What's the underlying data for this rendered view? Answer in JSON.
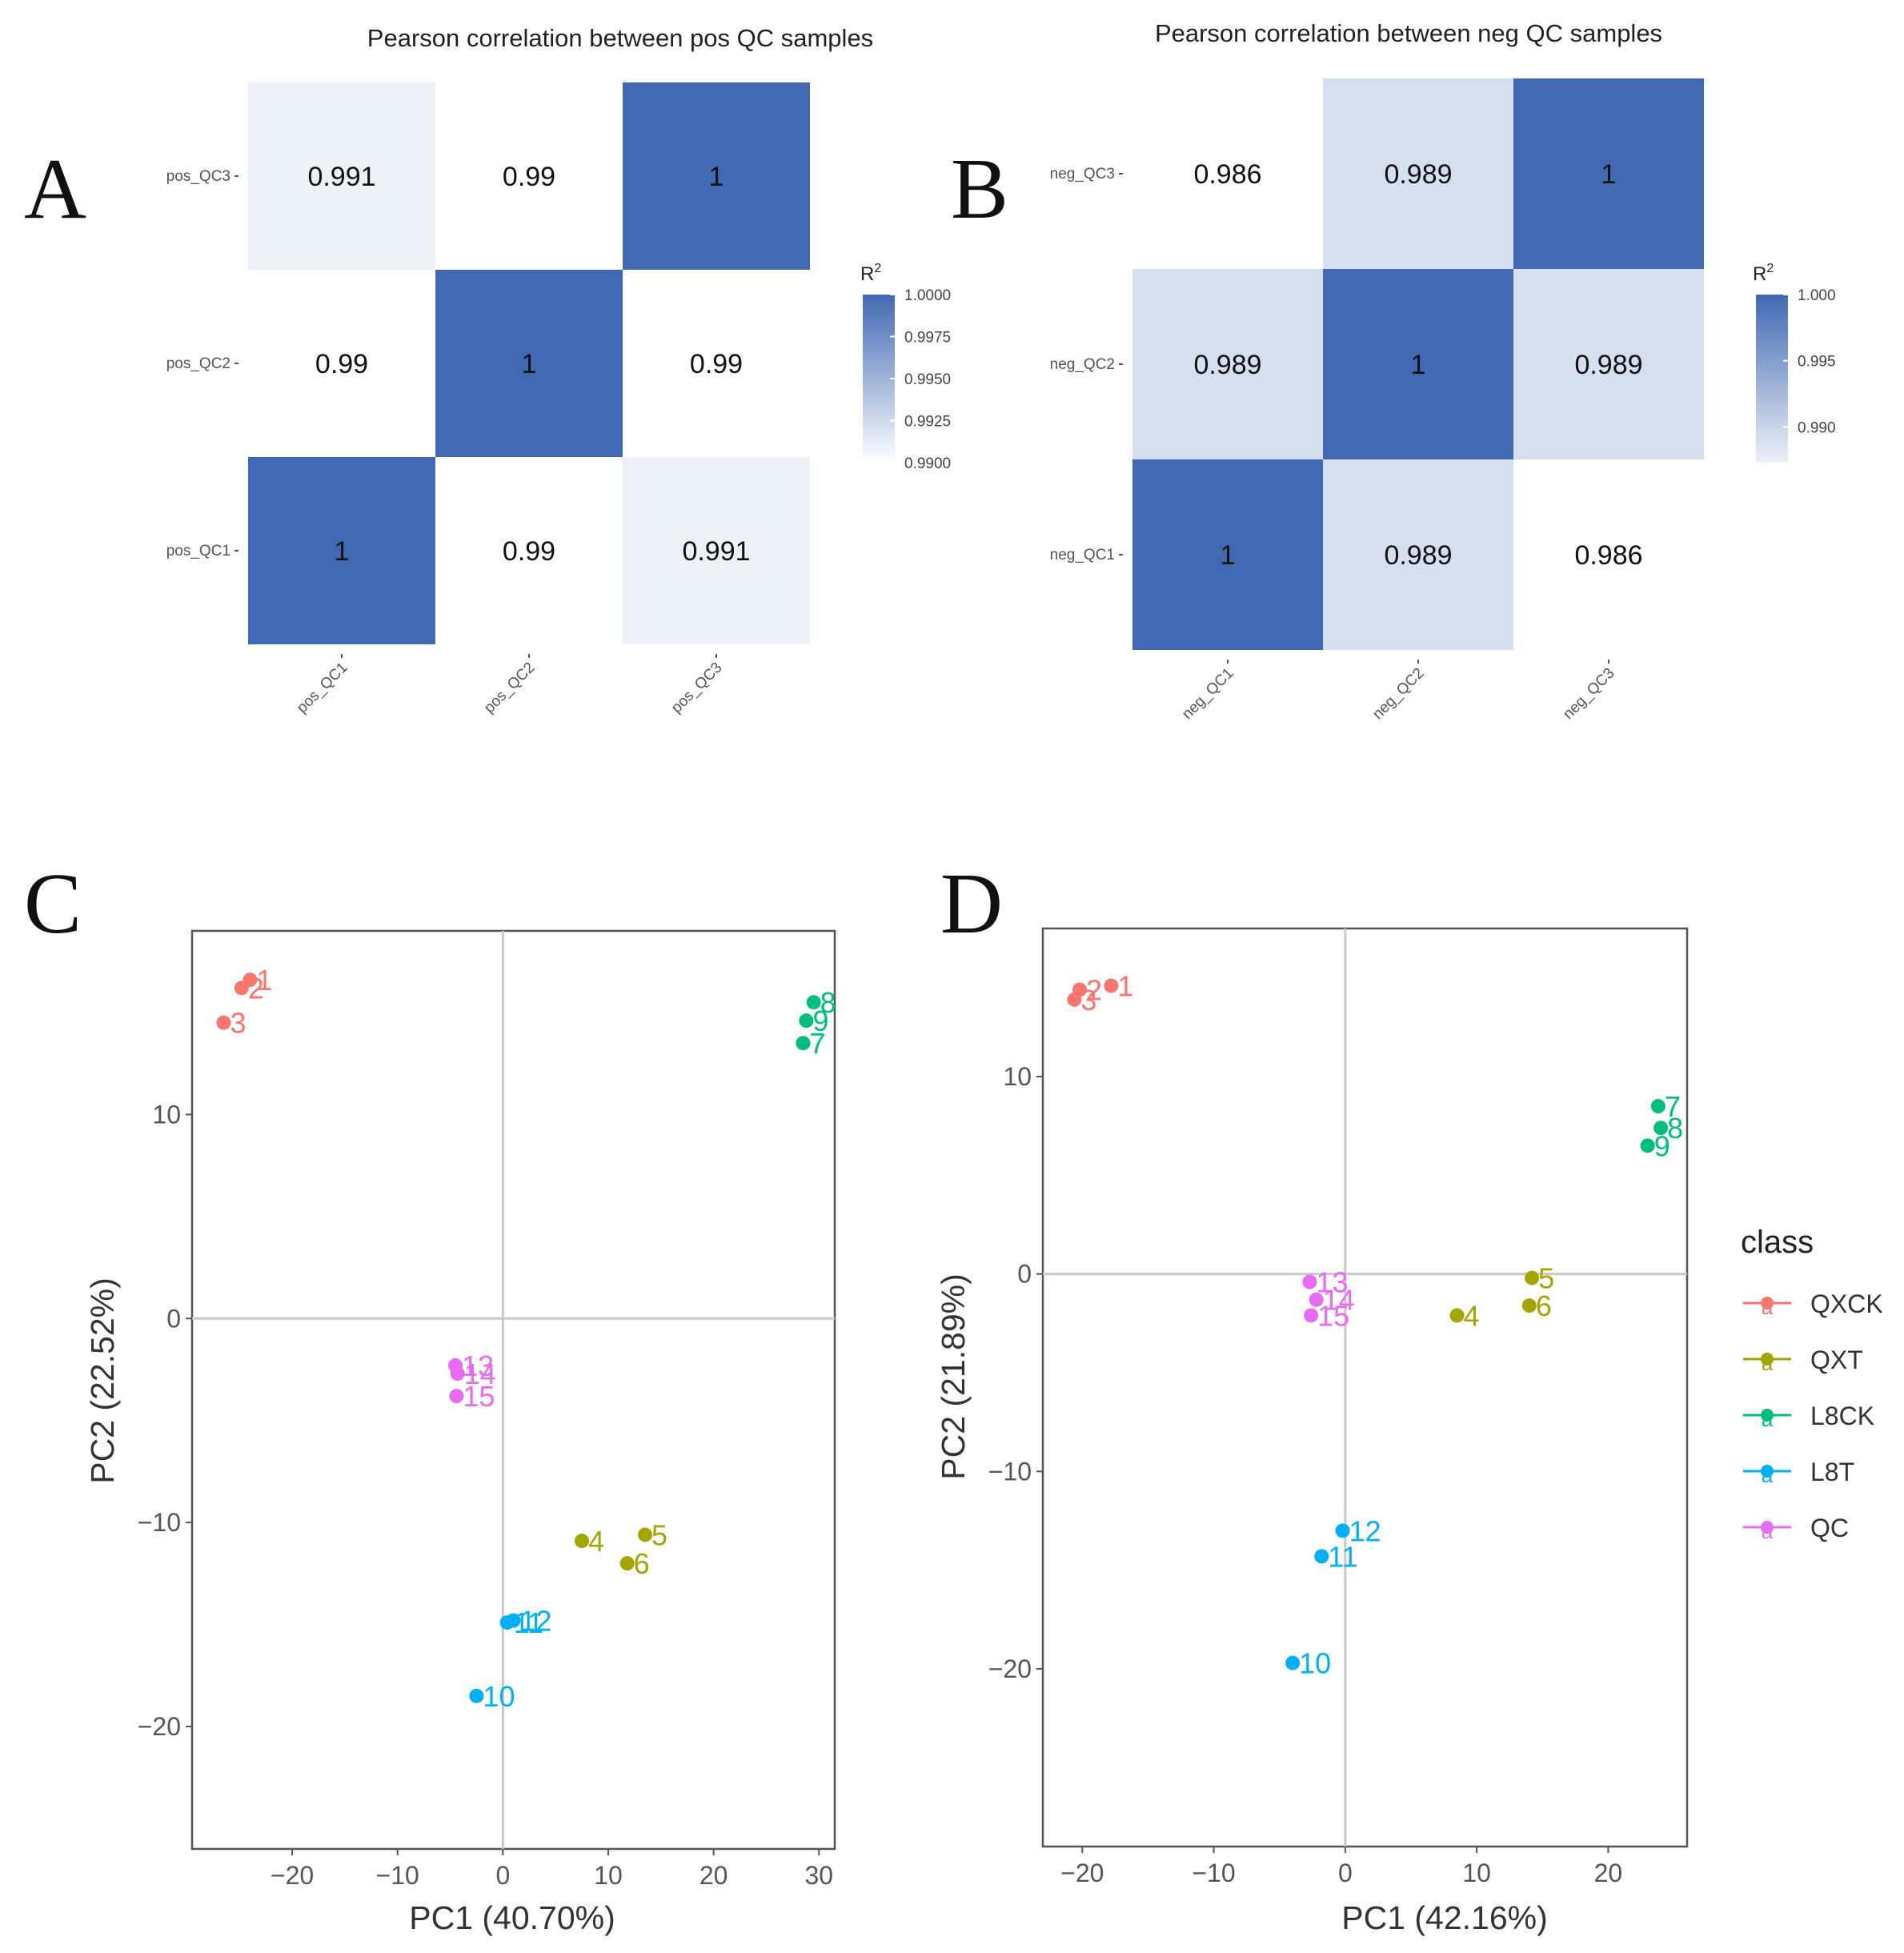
{
  "panel_letters": [
    "A",
    "B",
    "C",
    "D"
  ],
  "chart_data": [
    {
      "type": "heatmap",
      "panel": "A",
      "title": "Pearson correlation between pos QC samples",
      "rows": [
        "pos_QC1",
        "pos_QC2",
        "pos_QC3"
      ],
      "cols": [
        "pos_QC1",
        "pos_QC2",
        "pos_QC3"
      ],
      "values": [
        [
          1,
          0.99,
          0.991
        ],
        [
          0.99,
          1,
          0.99
        ],
        [
          0.991,
          0.99,
          1
        ]
      ],
      "labels": [
        [
          "1",
          "0.99",
          "0.991"
        ],
        [
          "0.99",
          "1",
          "0.99"
        ],
        [
          "0.991",
          "0.99",
          "1"
        ]
      ],
      "legend_title": "R",
      "legend_sup": "2",
      "legend_range": [
        0.99,
        1.0
      ],
      "legend_ticks": [
        1.0,
        0.9975,
        0.995,
        0.9925,
        0.99
      ],
      "legend_tick_labels": [
        "1.0000",
        "0.9975",
        "0.9950",
        "0.9925",
        "0.9900"
      ],
      "colors": {
        "low": "#ffffff",
        "high": "#4169b3"
      }
    },
    {
      "type": "heatmap",
      "panel": "B",
      "title": "Pearson correlation between neg QC samples",
      "rows": [
        "neg_QC1",
        "neg_QC2",
        "neg_QC3"
      ],
      "cols": [
        "neg_QC1",
        "neg_QC2",
        "neg_QC3"
      ],
      "values": [
        [
          1,
          0.989,
          0.986
        ],
        [
          0.989,
          1,
          0.989
        ],
        [
          0.986,
          0.989,
          1
        ]
      ],
      "labels": [
        [
          "1",
          "0.989",
          "0.986"
        ],
        [
          "0.989",
          "1",
          "0.989"
        ],
        [
          "0.986",
          "0.989",
          "1"
        ]
      ],
      "legend_title": "R",
      "legend_sup": "2",
      "legend_range": [
        0.986,
        1.0
      ],
      "legend_ticks": [
        1.0,
        0.995,
        0.99
      ],
      "legend_tick_labels": [
        "1.000",
        "0.995",
        "0.990"
      ],
      "colors": {
        "low": "#ffffff",
        "high": "#4169b3"
      }
    },
    {
      "type": "scatter",
      "panel": "C",
      "xlabel": "PC1 (40.70%)",
      "ylabel": "PC2 (22.52%)",
      "xlim": [
        -29.5,
        31.5
      ],
      "ylim": [
        -26,
        19
      ],
      "xticks": [
        -20,
        -10,
        0,
        10,
        20,
        30
      ],
      "xtick_labels": [
        "−20",
        "−10",
        "0",
        "10",
        "20",
        "30"
      ],
      "yticks": [
        -20,
        -10,
        0,
        10
      ],
      "ytick_labels": [
        "−20",
        "−10",
        "0",
        "10"
      ],
      "points": [
        {
          "label": "1",
          "class": "QXCK",
          "x": -24,
          "y": 16.6
        },
        {
          "label": "2",
          "class": "QXCK",
          "x": -24.8,
          "y": 16.2
        },
        {
          "label": "3",
          "class": "QXCK",
          "x": -26.5,
          "y": 14.5
        },
        {
          "label": "4",
          "class": "QXT",
          "x": 7.5,
          "y": -10.9
        },
        {
          "label": "5",
          "class": "QXT",
          "x": 13.5,
          "y": -10.6
        },
        {
          "label": "6",
          "class": "QXT",
          "x": 11.8,
          "y": -12.0
        },
        {
          "label": "7",
          "class": "L8CK",
          "x": 28.5,
          "y": 13.5
        },
        {
          "label": "8",
          "class": "L8CK",
          "x": 29.5,
          "y": 15.5
        },
        {
          "label": "9",
          "class": "L8CK",
          "x": 28.8,
          "y": 14.6
        },
        {
          "label": "10",
          "class": "L8T",
          "x": -2.5,
          "y": -18.5
        },
        {
          "label": "11",
          "class": "L8T",
          "x": 0.4,
          "y": -14.9
        },
        {
          "label": "12",
          "class": "L8T",
          "x": 1.0,
          "y": -14.8
        },
        {
          "label": "13",
          "class": "QC",
          "x": -4.5,
          "y": -2.3
        },
        {
          "label": "14",
          "class": "QC",
          "x": -4.3,
          "y": -2.7
        },
        {
          "label": "15",
          "class": "QC",
          "x": -4.4,
          "y": -3.8
        }
      ]
    },
    {
      "type": "scatter",
      "panel": "D",
      "xlabel": "PC1 (42.16%)",
      "ylabel": "PC2 (21.89%)",
      "xlim": [
        -23,
        26
      ],
      "ylim": [
        -29,
        17.5
      ],
      "xticks": [
        -20,
        -10,
        0,
        10,
        20
      ],
      "xtick_labels": [
        "−20",
        "−10",
        "0",
        "10",
        "20"
      ],
      "yticks": [
        -20,
        -10,
        0,
        10
      ],
      "ytick_labels": [
        "−20",
        "−10",
        "0",
        "10"
      ],
      "points": [
        {
          "label": "1",
          "class": "QXCK",
          "x": -17.8,
          "y": 14.6
        },
        {
          "label": "2",
          "class": "QXCK",
          "x": -20.2,
          "y": 14.4
        },
        {
          "label": "3",
          "class": "QXCK",
          "x": -20.6,
          "y": 13.9
        },
        {
          "label": "4",
          "class": "QXT",
          "x": 8.5,
          "y": -2.1
        },
        {
          "label": "5",
          "class": "QXT",
          "x": 14.2,
          "y": -0.2
        },
        {
          "label": "6",
          "class": "QXT",
          "x": 14.0,
          "y": -1.6
        },
        {
          "label": "7",
          "class": "L8CK",
          "x": 23.8,
          "y": 8.5
        },
        {
          "label": "8",
          "class": "L8CK",
          "x": 24.0,
          "y": 7.4
        },
        {
          "label": "9",
          "class": "L8CK",
          "x": 23.0,
          "y": 6.5
        },
        {
          "label": "10",
          "class": "L8T",
          "x": -4.0,
          "y": -19.7
        },
        {
          "label": "11",
          "class": "L8T",
          "x": -1.8,
          "y": -14.3
        },
        {
          "label": "12",
          "class": "L8T",
          "x": -0.2,
          "y": -13.0
        },
        {
          "label": "13",
          "class": "QC",
          "x": -2.7,
          "y": -0.4
        },
        {
          "label": "14",
          "class": "QC",
          "x": -2.2,
          "y": -1.3
        },
        {
          "label": "15",
          "class": "QC",
          "x": -2.6,
          "y": -2.1
        }
      ]
    }
  ],
  "class_legend": {
    "title": "class",
    "glyph": "a",
    "items": [
      {
        "name": "QXCK",
        "color": "#f8766d"
      },
      {
        "name": "QXT",
        "color": "#a3a500"
      },
      {
        "name": "L8CK",
        "color": "#00bf7d"
      },
      {
        "name": "L8T",
        "color": "#00b0f6"
      },
      {
        "name": "QC",
        "color": "#e76bf3"
      }
    ]
  }
}
